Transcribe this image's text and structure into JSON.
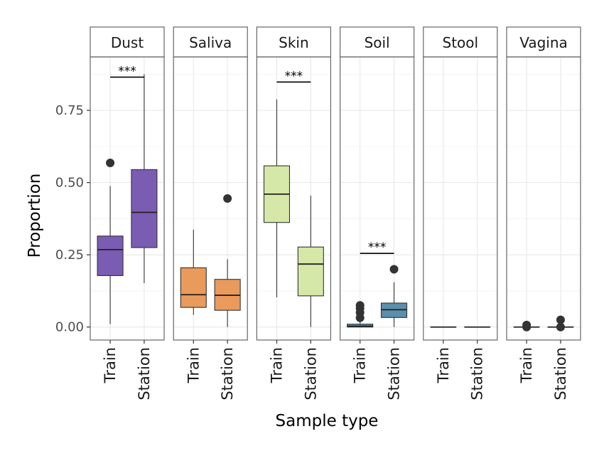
{
  "chart_data": {
    "type": "boxplot",
    "xlabel": "Sample type",
    "ylabel": "Proportion",
    "ylim": [
      -0.045,
      0.935
    ],
    "y_ticks": [
      0,
      0.25,
      0.5,
      0.75
    ],
    "y_tick_labels": [
      "0.00",
      "0.25",
      "0.50",
      "0.75"
    ],
    "grid": true,
    "categories": [
      "Train",
      "Station"
    ],
    "facets": [
      {
        "name": "Dust",
        "color": "#7b5cb3",
        "boxes": [
          {
            "category": "Train",
            "min": 0.01,
            "q1": 0.178,
            "median": 0.268,
            "q3": 0.315,
            "max": 0.488,
            "outliers": [
              0.568
            ]
          },
          {
            "category": "Station",
            "min": 0.152,
            "q1": 0.275,
            "median": 0.397,
            "q3": 0.545,
            "max": 0.875,
            "outliers": []
          }
        ],
        "annotation": {
          "text": "***",
          "y": 0.865
        }
      },
      {
        "name": "Saliva",
        "color": "#ea9a5a",
        "boxes": [
          {
            "category": "Train",
            "min": 0.042,
            "q1": 0.068,
            "median": 0.112,
            "q3": 0.205,
            "max": 0.337,
            "outliers": []
          },
          {
            "category": "Station",
            "min": 0.0,
            "q1": 0.058,
            "median": 0.11,
            "q3": 0.165,
            "max": 0.235,
            "outliers": [
              0.445
            ]
          }
        ]
      },
      {
        "name": "Skin",
        "color": "#d5e8a7",
        "boxes": [
          {
            "category": "Train",
            "min": 0.103,
            "q1": 0.362,
            "median": 0.46,
            "q3": 0.558,
            "max": 0.788,
            "outliers": []
          },
          {
            "category": "Station",
            "min": 0.0,
            "q1": 0.108,
            "median": 0.218,
            "q3": 0.277,
            "max": 0.455,
            "outliers": []
          }
        ],
        "annotation": {
          "text": "***",
          "y": 0.848
        }
      },
      {
        "name": "Soil",
        "color": "#5b8fab",
        "boxes": [
          {
            "category": "Train",
            "min": 0.0,
            "q1": 0.0,
            "median": 0.003,
            "q3": 0.01,
            "max": 0.02,
            "outliers": [
              0.032,
              0.05,
              0.065,
              0.075
            ]
          },
          {
            "category": "Station",
            "min": 0.0,
            "q1": 0.033,
            "median": 0.06,
            "q3": 0.083,
            "max": 0.155,
            "outliers": [
              0.2
            ]
          }
        ],
        "annotation": {
          "text": "***",
          "y": 0.255
        }
      },
      {
        "name": "Stool",
        "color": "#9c9c9c",
        "boxes": [
          {
            "category": "Train",
            "min": 0.0,
            "q1": 0.0,
            "median": 0.0,
            "q3": 0.0,
            "max": 0.0,
            "outliers": []
          },
          {
            "category": "Station",
            "min": 0.0,
            "q1": 0.0,
            "median": 0.0,
            "q3": 0.0,
            "max": 0.0,
            "outliers": []
          }
        ]
      },
      {
        "name": "Vagina",
        "color": "#9c9c9c",
        "boxes": [
          {
            "category": "Train",
            "min": 0.0,
            "q1": 0.0,
            "median": 0.0,
            "q3": 0.0,
            "max": 0.0,
            "outliers": [
              0.0,
              0.007
            ]
          },
          {
            "category": "Station",
            "min": 0.0,
            "q1": 0.0,
            "median": 0.0,
            "q3": 0.0,
            "max": 0.0,
            "outliers": [
              0.0,
              0.025
            ]
          }
        ]
      }
    ]
  }
}
